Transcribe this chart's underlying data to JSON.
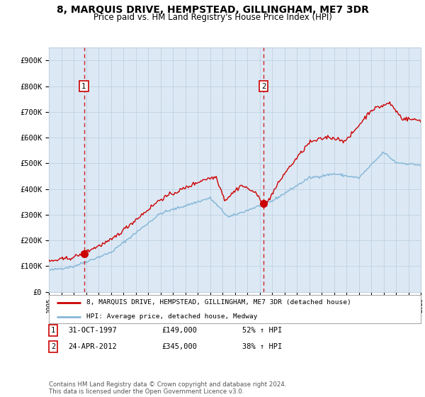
{
  "title": "8, MARQUIS DRIVE, HEMPSTEAD, GILLINGHAM, ME7 3DR",
  "subtitle": "Price paid vs. HM Land Registry's House Price Index (HPI)",
  "title_fontsize": 10,
  "subtitle_fontsize": 8.5,
  "bg_color": "#dce9f5",
  "line1_color": "#cc0000",
  "line2_color": "#88b8d8",
  "ylim": [
    0,
    950000
  ],
  "yticks": [
    0,
    100000,
    200000,
    300000,
    400000,
    500000,
    600000,
    700000,
    800000,
    900000
  ],
  "ytick_labels": [
    "£0",
    "£100K",
    "£200K",
    "£300K",
    "£400K",
    "£500K",
    "£600K",
    "£700K",
    "£800K",
    "£900K"
  ],
  "marker1_year": 1997.83,
  "marker1_value": 149000,
  "marker2_year": 2012.32,
  "marker2_value": 345000,
  "legend_line1": "8, MARQUIS DRIVE, HEMPSTEAD, GILLINGHAM, ME7 3DR (detached house)",
  "legend_line2": "HPI: Average price, detached house, Medway",
  "table_label1": "1",
  "table_date1": "31-OCT-1997",
  "table_price1": "£149,000",
  "table_hpi1": "52% ↑ HPI",
  "table_label2": "2",
  "table_date2": "24-APR-2012",
  "table_price2": "£345,000",
  "table_hpi2": "38% ↑ HPI",
  "footer": "Contains HM Land Registry data © Crown copyright and database right 2024.\nThis data is licensed under the Open Government Licence v3.0.",
  "grid_color": "#c0d0e0",
  "box_edge_color": "#cc0000"
}
